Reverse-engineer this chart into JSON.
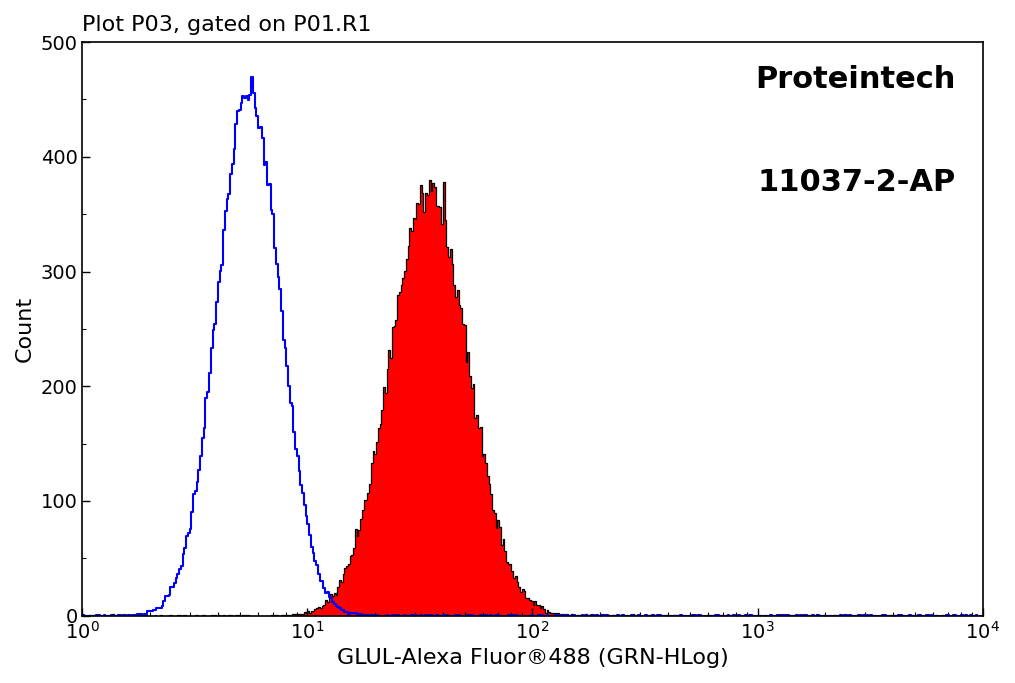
{
  "title": "Plot P03, gated on P01.R1",
  "xlabel": "GLUL-Alexa Fluor®488 (GRN-HLog)",
  "ylabel": "Count",
  "brand_line1": "Proteintech",
  "brand_line2": "11037-2-AP",
  "xlim": [
    1,
    10000
  ],
  "ylim": [
    0,
    500
  ],
  "yticks": [
    0,
    100,
    200,
    300,
    400,
    500
  ],
  "background_color": "#ffffff",
  "blue_color": "#0000ff",
  "red_color": "#ff0000",
  "black_color": "#000000",
  "title_fontsize": 16,
  "label_fontsize": 16,
  "brand_fontsize": 22,
  "tick_fontsize": 14,
  "blue_log_mean": 0.74,
  "blue_log_std": 0.14,
  "blue_peak": 470,
  "red_log_mean": 1.54,
  "red_log_std": 0.175,
  "red_peak": 380
}
